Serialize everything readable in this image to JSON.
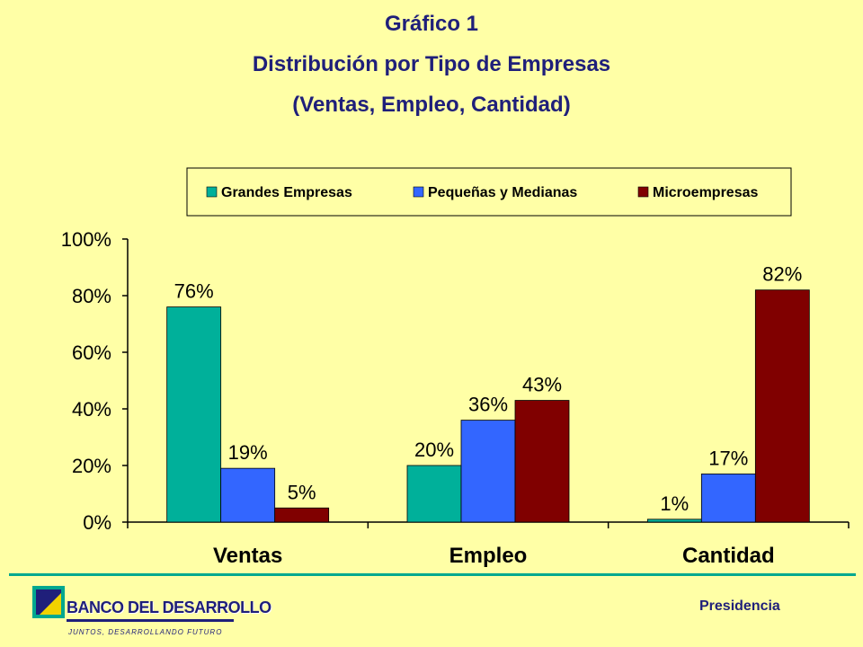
{
  "header": {
    "line1": "Gráfico 1",
    "line2": "Distribución por Tipo de Empresas",
    "line3": "(Ventas, Empleo, Cantidad)"
  },
  "chart_data": {
    "type": "bar",
    "categories": [
      "Ventas",
      "Empleo",
      "Cantidad"
    ],
    "series": [
      {
        "name": "Grandes Empresas",
        "values": [
          76,
          20,
          1
        ],
        "labels": [
          "76%",
          "20%",
          "1%"
        ],
        "color": "#00B09A"
      },
      {
        "name": "Pequeñas y Medianas",
        "values": [
          19,
          36,
          17
        ],
        "labels": [
          "19%",
          "36%",
          "17%"
        ],
        "color": "#3366FF"
      },
      {
        "name": "Microempresas",
        "values": [
          5,
          43,
          82
        ],
        "labels": [
          "5%",
          "43%",
          "82%"
        ],
        "color": "#800000"
      }
    ],
    "ylim": [
      0,
      100
    ],
    "yticks": [
      0,
      20,
      40,
      60,
      80,
      100
    ],
    "ytick_labels": [
      "0%",
      "20%",
      "40%",
      "60%",
      "80%",
      "100%"
    ],
    "legend_position": "top",
    "grid": false
  },
  "footer": {
    "logo_text": "BANCO DEL DESARROLLO",
    "tagline": "JUNTOS, DESARROLLANDO FUTURO",
    "section": "Presidencia"
  }
}
